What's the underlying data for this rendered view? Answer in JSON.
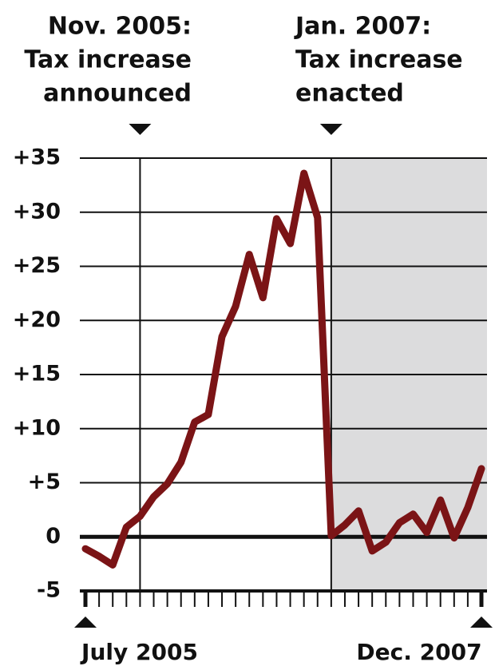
{
  "chart_data": {
    "type": "line",
    "annotations": [
      {
        "lines": [
          "Nov. 2005:",
          "Tax increase",
          "announced"
        ],
        "at": 4
      },
      {
        "lines": [
          "Jan. 2007:",
          "Tax increase",
          "enacted"
        ],
        "at": 18
      }
    ],
    "categories": [
      "July 2005",
      null,
      null,
      null,
      null,
      null,
      null,
      null,
      null,
      null,
      null,
      null,
      null,
      null,
      null,
      null,
      null,
      null,
      null,
      null,
      null,
      null,
      null,
      null,
      null,
      null,
      null,
      null,
      null,
      "Dec. 2007"
    ],
    "series": [
      {
        "color": "#7b1416",
        "values": [
          -1.1,
          -1.8,
          -2.6,
          0.9,
          1.9,
          3.7,
          4.9,
          6.9,
          10.6,
          11.3,
          18.5,
          21.3,
          26.1,
          22.1,
          29.4,
          27.1,
          33.6,
          29.5,
          0.1,
          1.1,
          2.4,
          -1.3,
          -0.5,
          1.3,
          2.1,
          0.4,
          3.4,
          -0.1,
          2.7,
          6.3
        ]
      }
    ],
    "ylim": [
      -5,
      35
    ],
    "yticks": [
      -5,
      0,
      {
        "value": 5,
        "label": "+5"
      },
      {
        "value": 10,
        "label": "+10"
      },
      {
        "value": 15,
        "label": "+15"
      },
      {
        "value": 20,
        "label": "+20"
      },
      {
        "value": 25,
        "label": "+25"
      },
      {
        "value": 30,
        "label": "+30"
      },
      {
        "value": 35,
        "label": "+35"
      }
    ],
    "grid": true
  }
}
